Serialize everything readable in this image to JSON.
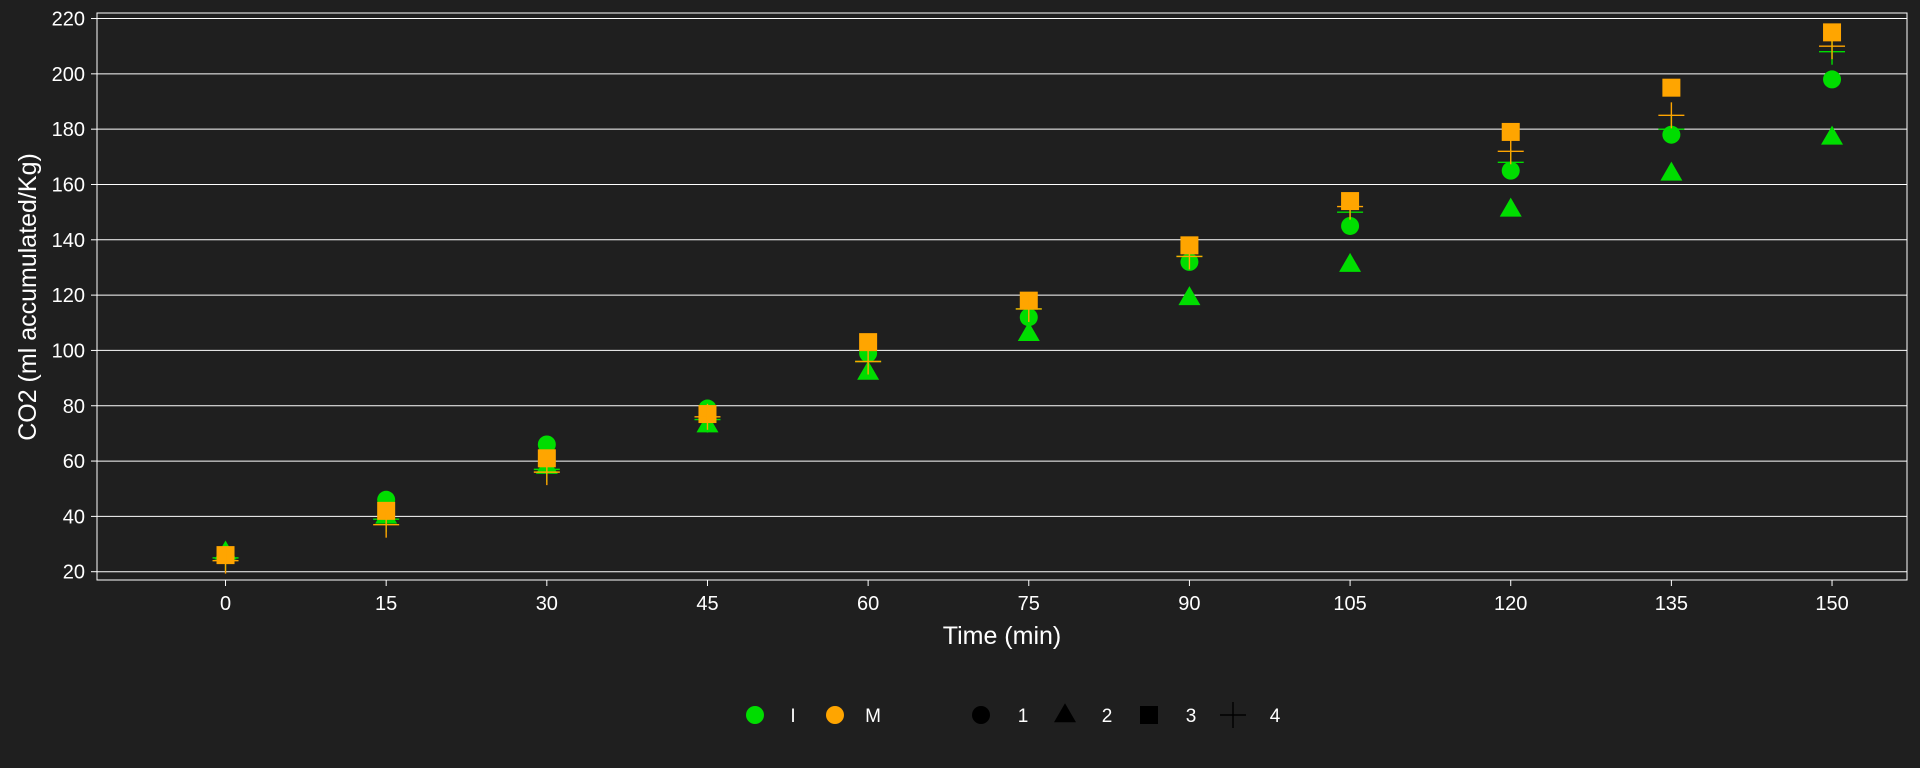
{
  "chart_data": {
    "type": "scatter",
    "xlabel": "Time (min)",
    "ylabel": "CO2 (ml accumulated/Kg)",
    "xlim": [
      -12,
      157
    ],
    "ylim": [
      17,
      222
    ],
    "x_ticks": [
      0,
      15,
      30,
      45,
      60,
      75,
      90,
      105,
      120,
      135,
      150
    ],
    "y_ticks": [
      20,
      40,
      60,
      80,
      100,
      120,
      140,
      160,
      180,
      200,
      220
    ],
    "grid": "horizontal",
    "legend_position": "bottom",
    "colors": {
      "I": "#00dd00",
      "M": "#ffa500",
      "background": "#1f1f1f",
      "grid": "#ffffff",
      "legend_shape": "#000000"
    },
    "color_legend": [
      {
        "key": "I",
        "label": "I"
      },
      {
        "key": "M",
        "label": "M"
      }
    ],
    "shape_legend": [
      {
        "shape": "circle",
        "label": "1"
      },
      {
        "shape": "triangle",
        "label": "2"
      },
      {
        "shape": "square",
        "label": "3"
      },
      {
        "shape": "plus",
        "label": "4"
      }
    ],
    "series": [
      {
        "color": "I",
        "shape": "circle",
        "x": [
          0,
          15,
          30,
          45,
          60,
          75,
          90,
          105,
          120,
          135,
          150
        ],
        "y": [
          26,
          46,
          66,
          79,
          99,
          112,
          132,
          145,
          165,
          178,
          198
        ]
      },
      {
        "color": "I",
        "shape": "triangle",
        "x": [
          0,
          15,
          30,
          45,
          60,
          75,
          90,
          105,
          120,
          135,
          150
        ],
        "y": [
          27,
          40,
          58,
          73,
          92,
          106,
          119,
          131,
          151,
          164,
          177
        ]
      },
      {
        "color": "I",
        "shape": "plus",
        "x": [
          0,
          15,
          30,
          45,
          60,
          75,
          90,
          105,
          120,
          135,
          150
        ],
        "y": [
          25,
          39,
          57,
          75,
          96,
          115,
          134,
          150,
          168,
          180,
          208
        ]
      },
      {
        "color": "M",
        "shape": "square",
        "x": [
          0,
          15,
          30,
          45,
          60,
          75,
          90,
          105,
          120,
          135,
          150
        ],
        "y": [
          26,
          42,
          61,
          77,
          103,
          118,
          138,
          154,
          179,
          195,
          215
        ]
      },
      {
        "color": "M",
        "shape": "plus",
        "x": [
          0,
          15,
          30,
          45,
          60,
          75,
          90,
          105,
          120,
          135,
          150
        ],
        "y": [
          24,
          37,
          56,
          76,
          96,
          115,
          134,
          152,
          172,
          185,
          210
        ]
      }
    ]
  }
}
